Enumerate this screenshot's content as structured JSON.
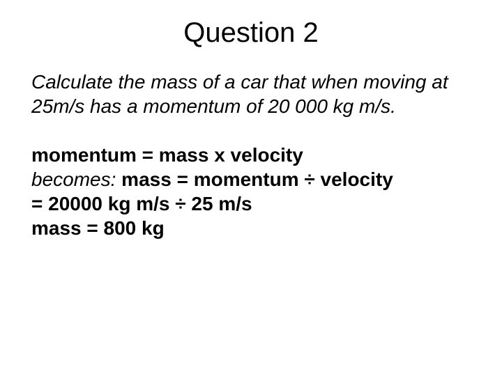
{
  "slide": {
    "title": "Question 2",
    "question": "Calculate the mass of a car that when moving at 25m/s has a momentum of 20 000 kg m/s.",
    "solution": {
      "line1": "momentum = mass x velocity",
      "line2_prefix": "becomes:",
      "line2_rest": " mass = momentum ÷ velocity",
      "line3": "= 20000 kg m/s ÷ 25 m/s",
      "line4": "mass = 800 kg"
    },
    "styling": {
      "background_color": "#ffffff",
      "text_color": "#000000",
      "title_fontsize": 40,
      "body_fontsize": 28,
      "font_family": "Arial"
    }
  }
}
